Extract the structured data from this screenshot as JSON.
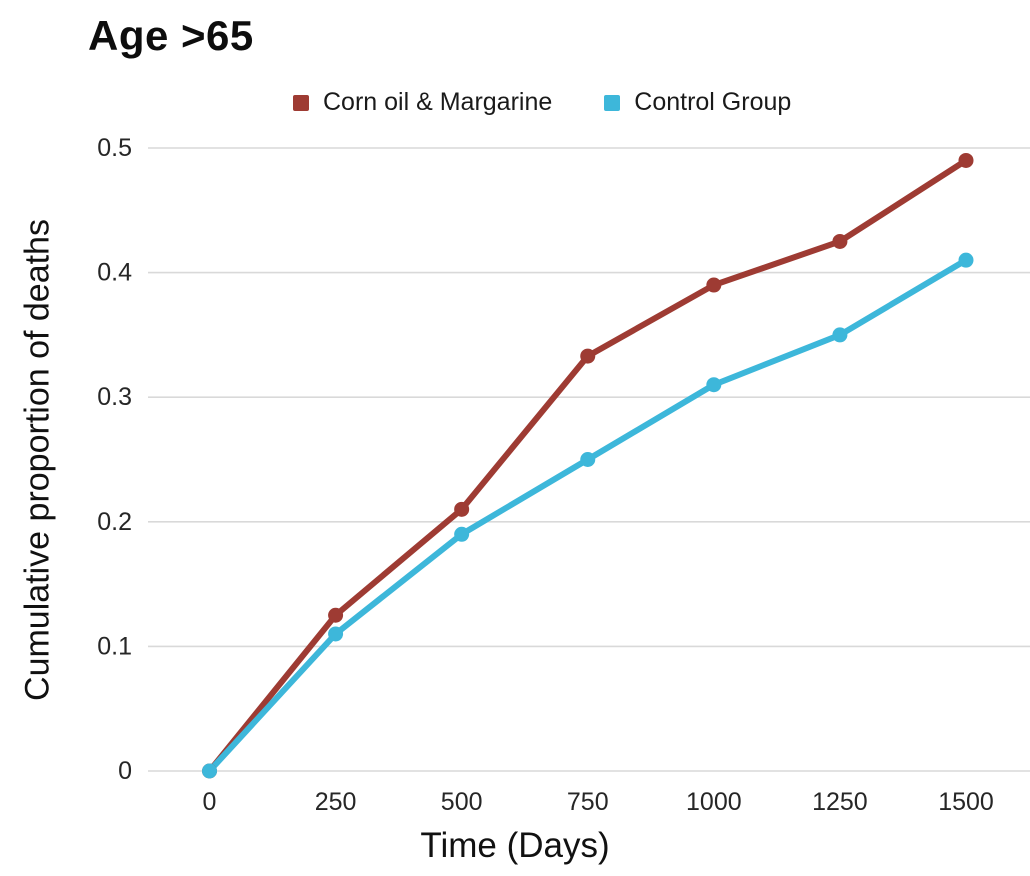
{
  "title": "Age >65",
  "legend": {
    "items": [
      {
        "label": "Corn oil & Margarine",
        "color": "#9E3B33"
      },
      {
        "label": "Control Group",
        "color": "#3DB7DA"
      }
    ]
  },
  "axes": {
    "xlabel": "Time (Days)",
    "ylabel": "Cumulative proportion of deaths"
  },
  "colors": {
    "series_corn_oil": "#9E3B33",
    "series_control": "#3DB7DA",
    "grid": "#D9D9D9",
    "tick_text": "#262626",
    "title_text": "#0D0D0D"
  },
  "chart_data": {
    "type": "line",
    "title": "Age >65",
    "xlabel": "Time (Days)",
    "ylabel": "Cumulative proportion of deaths",
    "x": [
      0,
      250,
      500,
      750,
      1000,
      1250,
      1500
    ],
    "xticks": [
      "0",
      "250",
      "500",
      "750",
      "1000",
      "1250",
      "1500"
    ],
    "yticks": [
      "0",
      "0.1",
      "0.2",
      "0.3",
      "0.4",
      "0.5"
    ],
    "ytick_values": [
      0,
      0.1,
      0.2,
      0.3,
      0.4,
      0.5
    ],
    "xlim": [
      0,
      1500
    ],
    "ylim": [
      0,
      0.5
    ],
    "grid": true,
    "legend_position": "top",
    "series": [
      {
        "name": "Corn oil & Margarine",
        "color": "#9E3B33",
        "values": [
          0,
          0.125,
          0.21,
          0.333,
          0.39,
          0.425,
          0.49
        ]
      },
      {
        "name": "Control Group",
        "color": "#3DB7DA",
        "values": [
          0,
          0.11,
          0.19,
          0.25,
          0.31,
          0.35,
          0.41
        ]
      }
    ]
  }
}
